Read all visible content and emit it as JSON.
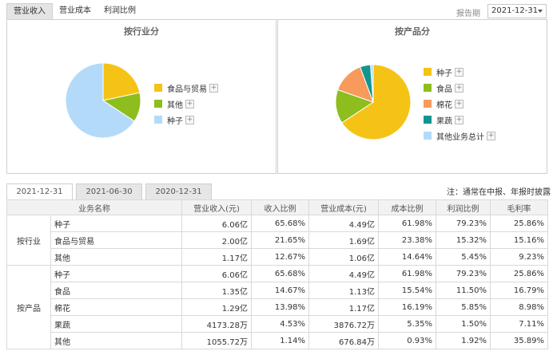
{
  "top_tabs": [
    {
      "label": "营业收入",
      "active": true
    },
    {
      "label": "营业成本",
      "active": false
    },
    {
      "label": "利润比例",
      "active": false
    }
  ],
  "period": {
    "label": "报告期",
    "value": "2021-12-31"
  },
  "charts": [
    {
      "title": "按行业分",
      "legend": [
        {
          "label": "食品与贸易",
          "color": "#f5c316",
          "value": 21.65
        },
        {
          "label": "其他",
          "color": "#8ebd1e",
          "value": 12.67
        },
        {
          "label": "种子",
          "color": "#b3dbf9",
          "value": 65.68
        }
      ]
    },
    {
      "title": "按产品分",
      "legend": [
        {
          "label": "种子",
          "color": "#f5c316",
          "value": 65.68
        },
        {
          "label": "食品",
          "color": "#8ebd1e",
          "value": 14.67
        },
        {
          "label": "棉花",
          "color": "#f79a5c",
          "value": 13.98
        },
        {
          "label": "果蔬",
          "color": "#149490",
          "value": 4.53
        },
        {
          "label": "其他业务总计",
          "color": "#b3dbf9",
          "value": 1.14
        }
      ]
    }
  ],
  "date_tabs": [
    {
      "label": "2021-12-31",
      "active": true
    },
    {
      "label": "2021-06-30",
      "active": false
    },
    {
      "label": "2020-12-31",
      "active": false
    }
  ],
  "note": "注：通常在中报、年报时披露",
  "table": {
    "headers": [
      "业务名称",
      "营业收入(元)",
      "收入比例",
      "营业成本(元)",
      "成本比例",
      "利润比例",
      "毛利率"
    ],
    "groups": [
      {
        "label": "按行业",
        "rows": [
          [
            "种子",
            "6.06亿",
            "65.68%",
            "4.49亿",
            "61.98%",
            "79.23%",
            "25.86%"
          ],
          [
            "食品与贸易",
            "2.00亿",
            "21.65%",
            "1.69亿",
            "23.38%",
            "15.32%",
            "15.16%"
          ],
          [
            "其他",
            "1.17亿",
            "12.67%",
            "1.06亿",
            "14.64%",
            "5.45%",
            "9.23%"
          ]
        ]
      },
      {
        "label": "按产品",
        "rows": [
          [
            "种子",
            "6.06亿",
            "65.68%",
            "4.49亿",
            "61.98%",
            "79.23%",
            "25.86%"
          ],
          [
            "食品",
            "1.35亿",
            "14.67%",
            "1.13亿",
            "15.54%",
            "11.50%",
            "16.79%"
          ],
          [
            "棉花",
            "1.29亿",
            "13.98%",
            "1.17亿",
            "16.19%",
            "5.85%",
            "8.98%"
          ],
          [
            "果蔬",
            "4173.28万",
            "4.53%",
            "3876.72万",
            "5.35%",
            "1.50%",
            "7.11%"
          ],
          [
            "其他",
            "1055.72万",
            "1.14%",
            "676.84万",
            "0.93%",
            "1.92%",
            "35.89%"
          ]
        ]
      }
    ]
  }
}
